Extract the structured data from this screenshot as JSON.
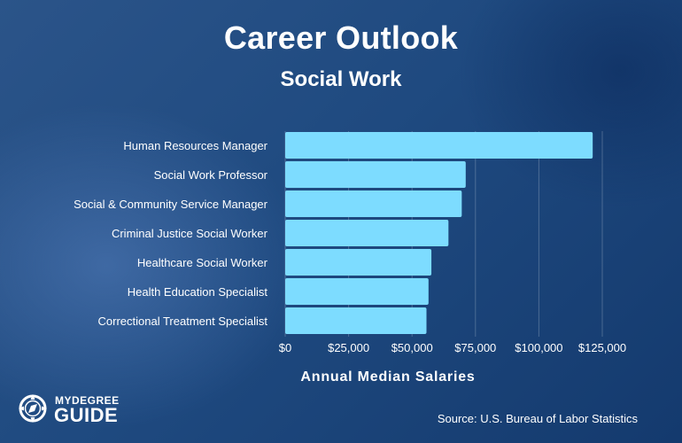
{
  "header": {
    "title": "Career Outlook",
    "subtitle": "Social Work"
  },
  "footer": {
    "source": "Source: U.S. Bureau of Labor Statistics",
    "logo_top": "MYDEGREE",
    "logo_bottom": "GUIDE"
  },
  "colors": {
    "bar": "#7ddcff",
    "grid": "rgba(255,255,255,0.22)"
  },
  "chart_data": {
    "type": "bar",
    "orientation": "horizontal",
    "title": "Career Outlook",
    "subtitle": "Social Work",
    "xlabel": "Annual Median Salaries",
    "ylabel": "",
    "categories": [
      "Human Resources Manager",
      "Social Work Professor",
      "Social & Community Service Manager",
      "Criminal Justice Social Worker",
      "Healthcare Social Worker",
      "Health Education Specialist",
      "Correctional Treatment Specialist"
    ],
    "values": [
      121220,
      71160,
      69600,
      64360,
      57630,
      56500,
      55690
    ],
    "xlim": [
      0,
      125000
    ],
    "ticks": [
      0,
      25000,
      50000,
      75000,
      100000,
      125000
    ],
    "tick_labels": [
      "$0",
      "$25,000",
      "$50,000",
      "$75,000",
      "$100,000",
      "$125,000"
    ],
    "grid": true,
    "legend": "none"
  }
}
